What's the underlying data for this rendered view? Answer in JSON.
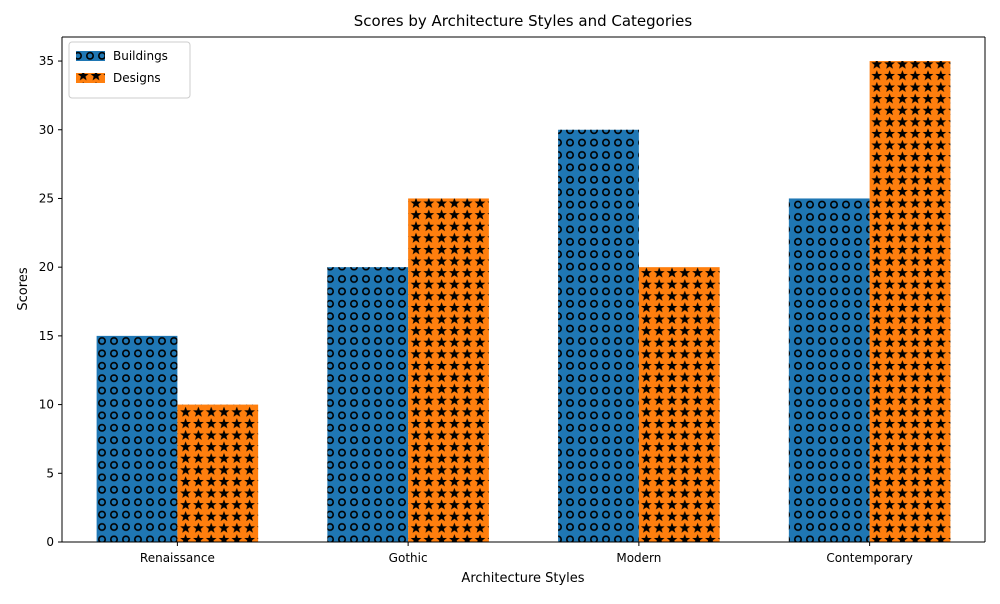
{
  "chart_data": {
    "type": "bar",
    "title": "Scores by Architecture Styles and Categories",
    "xlabel": "Architecture Styles",
    "ylabel": "Scores",
    "categories": [
      "Renaissance",
      "Gothic",
      "Modern",
      "Contemporary"
    ],
    "series": [
      {
        "name": "Buildings",
        "values": [
          15,
          20,
          30,
          25
        ],
        "color": "#1f77b4",
        "hatch": "circles"
      },
      {
        "name": "Designs",
        "values": [
          10,
          25,
          20,
          35
        ],
        "color": "#ff7f0e",
        "hatch": "stars"
      }
    ],
    "ylim": [
      0,
      36.75
    ],
    "yticks": [
      0,
      5,
      10,
      15,
      20,
      25,
      30,
      35
    ],
    "grid": false,
    "legend_position": "top-left"
  }
}
